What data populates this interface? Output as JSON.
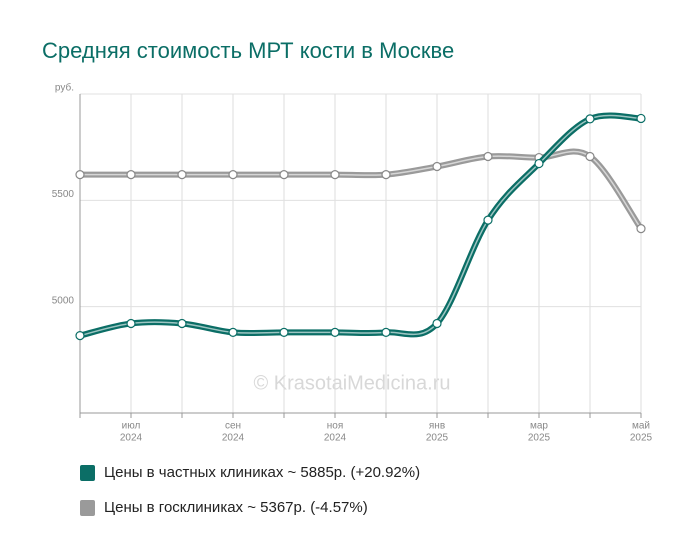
{
  "chart_data": {
    "type": "line",
    "title": "Средняя стоимость МРТ кости в Москве",
    "watermark": "© KrasotaiMedicina.ru",
    "categories": [
      null,
      {
        "month": "июл",
        "year": "2024"
      },
      null,
      {
        "month": "сен",
        "year": "2024"
      },
      null,
      {
        "month": "ноя",
        "year": "2024"
      },
      null,
      {
        "month": "янв",
        "year": "2025"
      },
      null,
      {
        "month": "мар",
        "year": "2025"
      },
      null,
      {
        "month": "май",
        "year": "2025"
      }
    ],
    "ylim": [
      4500,
      6000
    ],
    "yticks": [
      5000,
      5500,
      {
        "value": 6000,
        "label": "руб."
      }
    ],
    "grid": true,
    "series": [
      {
        "name": "Цены в госклиниках ~ 5367р. (-4.57%)",
        "color": "#9a9a9a",
        "values": [
          5621,
          5621,
          5621,
          5621,
          5621,
          5621,
          5621,
          5659,
          5706,
          5701,
          5706,
          5367
        ]
      },
      {
        "name": "Цены в частных клиниках ~ 5885р. (+20.92%)",
        "color": "#0b6e66",
        "values": [
          4864,
          4921,
          4921,
          4879,
          4879,
          4879,
          4879,
          4921,
          5407,
          5673,
          5883,
          5885
        ]
      }
    ]
  }
}
